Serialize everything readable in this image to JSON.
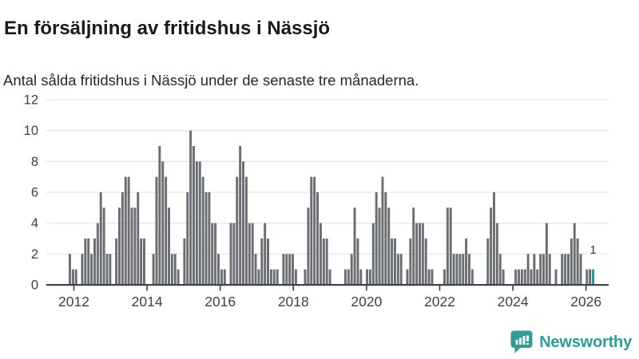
{
  "header": {
    "title": "En försäljning av fritidshus i Nässjö",
    "subtitle": "Antal sålda fritidshus i Nässjö under de senaste tre månaderna."
  },
  "chart_data": {
    "type": "bar",
    "title": "En försäljning av fritidshus i Nässjö",
    "xlabel": "",
    "ylabel": "",
    "x_unit": "month",
    "x_start": "2012-01",
    "x_end": "2026-02",
    "ylim": [
      0,
      12
    ],
    "y_ticks": [
      0,
      2,
      4,
      6,
      8,
      10,
      12
    ],
    "x_tick_years": [
      "2012",
      "2014",
      "2016",
      "2018",
      "2020",
      "2022",
      "2024",
      "2026"
    ],
    "grid": "horizontal",
    "values_by_year": {
      "2012": [
        2,
        1,
        1,
        0,
        2,
        3,
        3,
        2,
        3,
        4,
        6,
        5
      ],
      "2013": [
        2,
        2,
        0,
        3,
        5,
        6,
        7,
        7,
        5,
        5,
        6,
        3
      ],
      "2014": [
        3,
        0,
        0,
        2,
        7,
        9,
        8,
        7,
        5,
        2,
        2,
        1
      ],
      "2015": [
        0,
        3,
        6,
        10,
        9,
        8,
        8,
        7,
        6,
        6,
        4,
        4
      ],
      "2016": [
        2,
        1,
        1,
        0,
        4,
        4,
        7,
        9,
        8,
        7,
        4,
        4
      ],
      "2017": [
        2,
        1,
        3,
        4,
        3,
        1,
        1,
        1,
        0,
        2,
        2,
        2
      ],
      "2018": [
        2,
        1,
        0,
        0,
        1,
        5,
        7,
        7,
        6,
        4,
        3,
        3
      ],
      "2019": [
        1,
        0,
        0,
        0,
        0,
        1,
        1,
        2,
        5,
        3,
        1,
        0
      ],
      "2020": [
        1,
        1,
        4,
        6,
        5,
        7,
        6,
        5,
        3,
        3,
        2,
        2
      ],
      "2021": [
        0,
        1,
        3,
        5,
        4,
        4,
        4,
        3,
        1,
        1,
        0,
        0
      ],
      "2022": [
        0,
        1,
        5,
        5,
        2,
        2,
        2,
        2,
        3,
        2,
        1,
        0
      ],
      "2023": [
        0,
        0,
        0,
        3,
        5,
        6,
        4,
        2,
        1,
        0,
        0,
        0
      ],
      "2024": [
        1,
        1,
        1,
        1,
        2,
        1,
        2,
        1,
        2,
        2,
        4,
        2
      ],
      "2025": [
        0,
        1,
        0,
        2,
        2,
        2,
        3,
        4,
        3,
        2,
        0,
        1
      ],
      "2026": [
        1,
        1
      ]
    },
    "highlight_last_bar": true,
    "last_value_label": "1",
    "legend": "none",
    "colors": {
      "bar": "#6A6E72",
      "highlight": "#189C9E",
      "grid": "#E8E8E8",
      "axis": "#3F4347",
      "tick_label": "#3D4247",
      "value_label": "#333333"
    }
  },
  "footer": {
    "brand": "Newsworthy",
    "brand_color": "#2E9E94"
  }
}
